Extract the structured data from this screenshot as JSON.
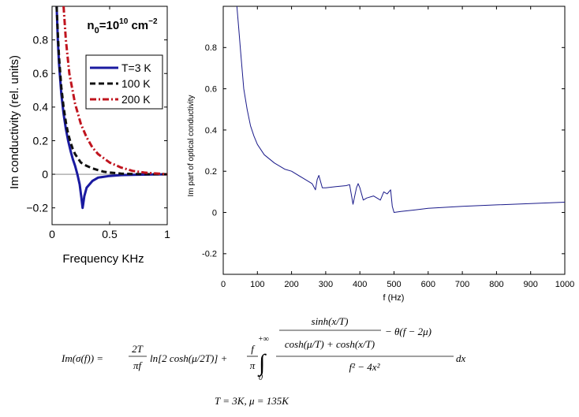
{
  "chart_data": [
    {
      "type": "line",
      "title": "n0=10^10 cm^-2",
      "title_parts": {
        "base": "n",
        "sub": "0",
        "mid": "=10",
        "sup1": "10",
        "unit": " cm",
        "sup2": "−2"
      },
      "xlabel": "Frequency KHz",
      "ylabel": "Im conductivity (rel. units)",
      "xlim": [
        0,
        1
      ],
      "ylim": [
        -0.3,
        1.0
      ],
      "xticks": [
        0,
        0.5,
        1
      ],
      "xtick_labels": [
        "0",
        "0.5",
        "1"
      ],
      "yticks": [
        -0.2,
        0,
        0.2,
        0.4,
        0.6,
        0.8
      ],
      "ytick_labels": [
        "−0.2",
        "0",
        "0.2",
        "0.4",
        "0.6",
        "0.8"
      ],
      "legend_position": "upper-right",
      "series": [
        {
          "name": "T=3 K",
          "color": "#1a1aa0",
          "style": "solid",
          "x": [
            0.04,
            0.05,
            0.06,
            0.08,
            0.1,
            0.12,
            0.14,
            0.16,
            0.18,
            0.2,
            0.22,
            0.24,
            0.255,
            0.265,
            0.27,
            0.28,
            0.3,
            0.35,
            0.4,
            0.5,
            0.6,
            0.7,
            0.8,
            0.9,
            1.0
          ],
          "y": [
            1.0,
            0.8,
            0.66,
            0.48,
            0.36,
            0.27,
            0.2,
            0.14,
            0.09,
            0.05,
            0.0,
            -0.06,
            -0.14,
            -0.2,
            -0.18,
            -0.13,
            -0.08,
            -0.04,
            -0.02,
            -0.01,
            -0.005,
            -0.003,
            -0.002,
            -0.001,
            0.0
          ]
        },
        {
          "name": "100 K",
          "color": "#111111",
          "style": "dashed",
          "x": [
            0.04,
            0.05,
            0.06,
            0.08,
            0.1,
            0.12,
            0.14,
            0.16,
            0.18,
            0.2,
            0.22,
            0.25,
            0.3,
            0.35,
            0.4,
            0.45,
            0.5,
            0.6,
            0.7,
            0.8,
            1.0
          ],
          "y": [
            1.0,
            0.84,
            0.7,
            0.52,
            0.4,
            0.31,
            0.24,
            0.19,
            0.15,
            0.12,
            0.1,
            0.07,
            0.05,
            0.035,
            0.025,
            0.015,
            0.01,
            0.004,
            0.002,
            0.001,
            0.0
          ]
        },
        {
          "name": "200 K",
          "color": "#c0141e",
          "style": "dashdot",
          "x": [
            0.1,
            0.12,
            0.15,
            0.2,
            0.25,
            0.3,
            0.35,
            0.4,
            0.5,
            0.6,
            0.7,
            0.8,
            0.9,
            1.0
          ],
          "y": [
            1.0,
            0.8,
            0.6,
            0.42,
            0.3,
            0.22,
            0.16,
            0.12,
            0.07,
            0.04,
            0.02,
            0.01,
            0.005,
            0.0
          ]
        }
      ]
    },
    {
      "type": "line",
      "title": "",
      "xlabel": "f (Hz)",
      "ylabel": "Im part of optical conductivity",
      "xlim": [
        0,
        1000
      ],
      "ylim": [
        -0.3,
        1.0
      ],
      "xticks": [
        0,
        100,
        200,
        300,
        400,
        500,
        600,
        700,
        800,
        900,
        1000
      ],
      "xtick_labels": [
        "0",
        "100",
        "200",
        "300",
        "400",
        "500",
        "600",
        "700",
        "800",
        "900",
        "1000"
      ],
      "yticks": [
        -0.2,
        0,
        0.2,
        0.4,
        0.6,
        0.8
      ],
      "ytick_labels": [
        "-0.2",
        "0",
        "0.2",
        "0.4",
        "0.6",
        "0.8"
      ],
      "series": [
        {
          "name": "Im sigma",
          "color": "#1a1a8a",
          "style": "solid",
          "x": [
            40,
            45,
            50,
            55,
            60,
            70,
            80,
            90,
            100,
            120,
            150,
            180,
            200,
            230,
            260,
            270,
            275,
            280,
            290,
            300,
            330,
            360,
            370,
            380,
            390,
            395,
            400,
            410,
            420,
            440,
            460,
            470,
            480,
            490,
            495,
            500,
            520,
            560,
            600,
            700,
            800,
            900,
            1000
          ],
          "y": [
            1.0,
            0.9,
            0.8,
            0.7,
            0.6,
            0.5,
            0.42,
            0.37,
            0.33,
            0.28,
            0.24,
            0.21,
            0.2,
            0.17,
            0.14,
            0.11,
            0.16,
            0.18,
            0.12,
            0.12,
            0.125,
            0.13,
            0.135,
            0.04,
            0.12,
            0.14,
            0.12,
            0.06,
            0.07,
            0.08,
            0.06,
            0.1,
            0.09,
            0.11,
            0.03,
            0.0,
            0.005,
            0.012,
            0.02,
            0.03,
            0.037,
            0.043,
            0.05
          ]
        }
      ]
    }
  ],
  "formula": {
    "lhs": "Im(σ(f)) =",
    "t1_num": "2T",
    "t1_den": "πf",
    "t1_body": "ln[2 cosh(μ/2T)] +",
    "t2_num": "f",
    "t2_den": "π",
    "int_upper": "+∞",
    "int_lower": "0",
    "big_num_top": "sinh(x/T)",
    "big_num_bottom": "cosh(μ/T) + cosh(x/T)",
    "big_num_rest": "− θ(f − 2μ)",
    "big_den": "f² − 4x²",
    "dx": "dx",
    "params": "T = 3K,   μ = 135K"
  }
}
